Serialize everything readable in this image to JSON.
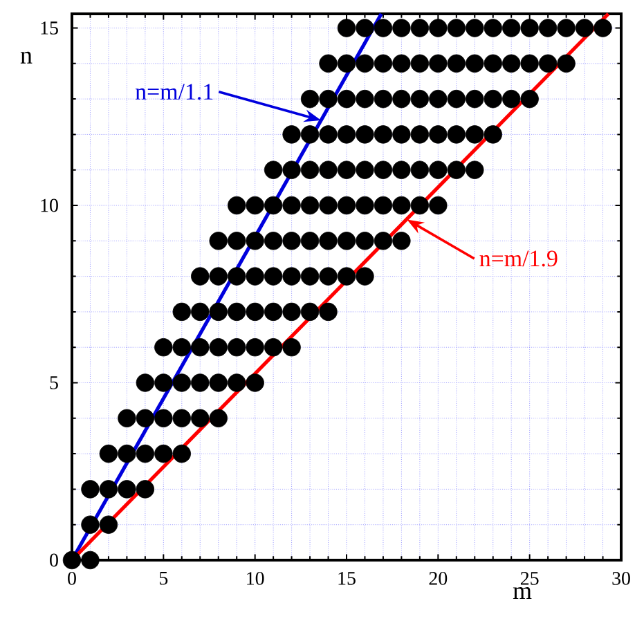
{
  "chart_data": {
    "type": "scatter",
    "xlabel": "m",
    "ylabel": "n",
    "xlim": [
      0,
      30
    ],
    "ylim": [
      0,
      15.4
    ],
    "xticks": [
      0,
      5,
      10,
      15,
      20,
      25,
      30
    ],
    "yticks": [
      0,
      5,
      10,
      15
    ],
    "grid": true,
    "series": [
      {
        "marker": "circle",
        "color": "#000000",
        "x": [
          0,
          1,
          1,
          2,
          1,
          2,
          3,
          4,
          2,
          3,
          4,
          5,
          6,
          3,
          4,
          5,
          6,
          7,
          8,
          4,
          5,
          6,
          7,
          8,
          9,
          10,
          5,
          6,
          7,
          8,
          9,
          10,
          11,
          12,
          6,
          7,
          8,
          9,
          10,
          11,
          12,
          13,
          14,
          7,
          8,
          9,
          10,
          11,
          12,
          13,
          14,
          15,
          16,
          8,
          9,
          10,
          11,
          12,
          13,
          14,
          15,
          16,
          17,
          18,
          9,
          10,
          11,
          12,
          13,
          14,
          15,
          16,
          17,
          18,
          19,
          20,
          11,
          12,
          13,
          14,
          15,
          16,
          17,
          18,
          19,
          20,
          21,
          22,
          12,
          13,
          14,
          15,
          16,
          17,
          18,
          19,
          20,
          21,
          22,
          23,
          13,
          14,
          15,
          16,
          17,
          18,
          19,
          20,
          21,
          22,
          23,
          24,
          25,
          14,
          15,
          16,
          17,
          18,
          19,
          20,
          21,
          22,
          23,
          24,
          25,
          26,
          27,
          15,
          16,
          17,
          18,
          19,
          20,
          21,
          22,
          23,
          24,
          25,
          26,
          27,
          28,
          29
        ],
        "values": [
          0,
          0,
          1,
          1,
          2,
          2,
          2,
          2,
          3,
          3,
          3,
          3,
          3,
          4,
          4,
          4,
          4,
          4,
          4,
          5,
          5,
          5,
          5,
          5,
          5,
          5,
          6,
          6,
          6,
          6,
          6,
          6,
          6,
          6,
          7,
          7,
          7,
          7,
          7,
          7,
          7,
          7,
          7,
          8,
          8,
          8,
          8,
          8,
          8,
          8,
          8,
          8,
          8,
          9,
          9,
          9,
          9,
          9,
          9,
          9,
          9,
          9,
          9,
          9,
          10,
          10,
          10,
          10,
          10,
          10,
          10,
          10,
          10,
          10,
          10,
          10,
          11,
          11,
          11,
          11,
          11,
          11,
          11,
          11,
          11,
          11,
          11,
          11,
          12,
          12,
          12,
          12,
          12,
          12,
          12,
          12,
          12,
          12,
          12,
          12,
          13,
          13,
          13,
          13,
          13,
          13,
          13,
          13,
          13,
          13,
          13,
          13,
          13,
          14,
          14,
          14,
          14,
          14,
          14,
          14,
          14,
          14,
          14,
          14,
          14,
          14,
          14,
          15,
          15,
          15,
          15,
          15,
          15,
          15,
          15,
          15,
          15,
          15,
          15,
          15,
          15,
          15
        ]
      },
      {
        "type": "line",
        "marker": "none",
        "color": "#0000dd",
        "x": [
          0,
          16.9
        ],
        "values": [
          0,
          15.4
        ]
      },
      {
        "type": "line",
        "marker": "none",
        "color": "#ff0000",
        "x": [
          0,
          29.3
        ],
        "values": [
          0,
          15.4
        ]
      }
    ],
    "annotations": [
      {
        "text": "n=m/1.1",
        "x": 13.6,
        "y": 12.4
      },
      {
        "text": "n=m/1.9",
        "x": 18.3,
        "y": 9.6
      }
    ]
  }
}
